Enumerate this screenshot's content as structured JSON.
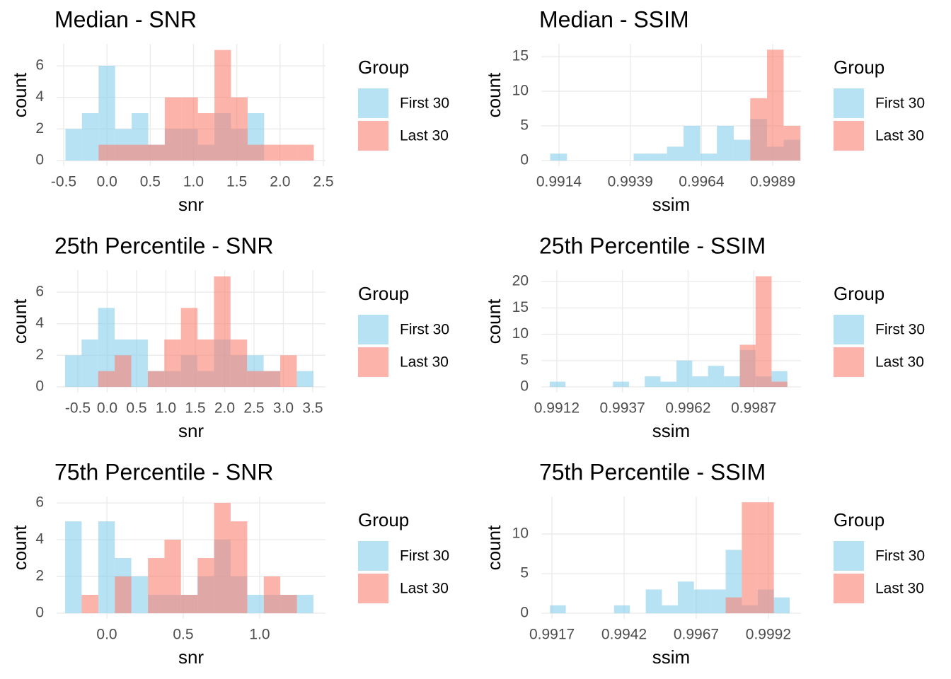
{
  "chart_data": [
    {
      "type": "histogram",
      "title": "Median - SNR",
      "x_label": "snr",
      "y_label": "count",
      "legend_title": "Group",
      "bins": [
        -0.48,
        -0.289,
        -0.097,
        0.094,
        0.285,
        0.477,
        0.668,
        0.859,
        1.051,
        1.242,
        1.433,
        1.625,
        1.816,
        2.007,
        2.199,
        2.39
      ],
      "series": [
        {
          "name": "First 30",
          "color": "#87CEEB",
          "values": [
            2,
            3,
            6,
            2,
            3,
            1,
            2,
            2,
            1,
            3,
            2,
            3,
            0,
            0,
            0
          ]
        },
        {
          "name": "Last 30",
          "color": "#FA8072",
          "values": [
            0,
            0,
            1,
            1,
            1,
            1,
            4,
            4,
            3,
            7,
            4,
            1,
            1,
            1,
            1
          ]
        }
      ],
      "xlim": [
        -0.582,
        2.525
      ],
      "ylim": [
        -0.36,
        7.39
      ],
      "xticks": [
        -0.5,
        {
          "value": 0,
          "label": "0.0"
        },
        0.5,
        {
          "value": 1,
          "label": "1.0"
        },
        1.5,
        {
          "value": 2,
          "label": "2.0"
        },
        2.5
      ],
      "yticks": [
        0,
        2,
        4,
        6
      ],
      "grid": true,
      "opacity": 0.6
    },
    {
      "type": "histogram",
      "title": "Median - SSIM",
      "x_label": "ssim",
      "y_label": "count",
      "legend_title": "Group",
      "bins": [
        0.99109,
        0.99168,
        0.99226,
        0.99285,
        0.99343,
        0.99402,
        0.9946,
        0.99519,
        0.99577,
        0.99636,
        0.99694,
        0.99753,
        0.99811,
        0.9987,
        0.99928,
        0.99987
      ],
      "series": [
        {
          "name": "First 30",
          "color": "#87CEEB",
          "values": [
            1,
            0,
            0,
            0,
            0,
            1,
            1,
            2,
            5,
            1,
            5,
            3,
            6,
            2,
            3
          ]
        },
        {
          "name": "Last 30",
          "color": "#FA8072",
          "values": [
            0,
            0,
            0,
            0,
            0,
            0,
            0,
            0,
            0,
            0,
            0,
            0,
            9,
            16,
            5
          ]
        }
      ],
      "xlim": [
        0.99078,
        0.99989
      ],
      "ylim": [
        -0.82,
        16.84
      ],
      "xticks": [
        0.9914,
        0.9939,
        0.9964,
        0.9989
      ],
      "yticks": [
        0,
        5,
        10,
        15
      ],
      "grid": true,
      "opacity": 0.6
    },
    {
      "type": "histogram",
      "title": "25th Percentile - SNR",
      "x_label": "snr",
      "y_label": "count",
      "legend_title": "Group",
      "bins": [
        -0.717,
        -0.435,
        -0.154,
        0.128,
        0.41,
        0.692,
        0.973,
        1.255,
        1.537,
        1.819,
        2.1,
        2.382,
        2.664,
        2.946,
        3.228,
        3.51
      ],
      "series": [
        {
          "name": "First 30",
          "color": "#87CEEB",
          "values": [
            2,
            3,
            5,
            3,
            3,
            1,
            1,
            2,
            1,
            3,
            2,
            2,
            1,
            0,
            1
          ]
        },
        {
          "name": "Last 30",
          "color": "#FA8072",
          "values": [
            0,
            0,
            1,
            2,
            0,
            1,
            3,
            5,
            3,
            7,
            3,
            1,
            1,
            2,
            0
          ]
        }
      ],
      "xlim": [
        -0.861,
        3.717
      ],
      "ylim": [
        -0.36,
        7.39
      ],
      "xticks": [
        -0.5,
        {
          "value": 0,
          "label": "0.0"
        },
        0.5,
        {
          "value": 1,
          "label": "1.0"
        },
        1.5,
        {
          "value": 2,
          "label": "2.0"
        },
        2.5,
        {
          "value": 3,
          "label": "3.0"
        },
        3.5
      ],
      "yticks": [
        0,
        2,
        4,
        6
      ],
      "grid": true,
      "opacity": 0.6
    },
    {
      "type": "histogram",
      "title": "25th Percentile - SSIM",
      "x_label": "ssim",
      "y_label": "count",
      "legend_title": "Group",
      "bins": [
        0.99093,
        0.99153,
        0.99214,
        0.99274,
        0.99334,
        0.99395,
        0.99455,
        0.99515,
        0.99576,
        0.99636,
        0.99696,
        0.99757,
        0.99817,
        0.99877,
        0.99938,
        0.99998
      ],
      "series": [
        {
          "name": "First 30",
          "color": "#87CEEB",
          "values": [
            1,
            0,
            0,
            0,
            1,
            0,
            2,
            1,
            5,
            2,
            4,
            2,
            7,
            2,
            3
          ]
        },
        {
          "name": "Last 30",
          "color": "#FA8072",
          "values": [
            0,
            0,
            0,
            0,
            0,
            0,
            0,
            0,
            0,
            0,
            0,
            0,
            8,
            21,
            1
          ]
        }
      ],
      "xlim": [
        0.99061,
        1.0005
      ],
      "ylim": [
        -1.07,
        22.15
      ],
      "xticks": [
        0.9912,
        0.9937,
        0.9962,
        0.9987
      ],
      "yticks": [
        0,
        5,
        10,
        15,
        20
      ],
      "grid": true,
      "opacity": 0.6
    },
    {
      "type": "histogram",
      "title": "75th Percentile - SNR",
      "x_label": "snr",
      "y_label": "count",
      "legend_title": "Group",
      "bins": [
        -0.273,
        -0.165,
        -0.056,
        0.052,
        0.16,
        0.269,
        0.377,
        0.485,
        0.594,
        0.702,
        0.81,
        0.919,
        1.027,
        1.135,
        1.244,
        1.352
      ],
      "series": [
        {
          "name": "First 30",
          "color": "#87CEEB",
          "values": [
            5,
            0,
            5,
            3,
            2,
            1,
            1,
            1,
            2,
            4,
            2,
            1,
            1,
            1,
            1
          ]
        },
        {
          "name": "Last 30",
          "color": "#FA8072",
          "values": [
            0,
            1,
            0,
            2,
            0,
            3,
            4,
            1,
            3,
            6,
            5,
            0,
            2,
            1,
            0
          ]
        }
      ],
      "xlim": [
        -0.329,
        1.431
      ],
      "ylim": [
        -0.31,
        6.35
      ],
      "xticks": [
        {
          "value": 0,
          "label": "0.0"
        },
        0.5,
        {
          "value": 1,
          "label": "1.0"
        }
      ],
      "yticks": [
        0,
        2,
        4,
        6
      ],
      "grid": true,
      "opacity": 0.6
    },
    {
      "type": "histogram",
      "title": "75th Percentile - SSIM",
      "x_label": "ssim",
      "y_label": "count",
      "legend_title": "Group",
      "bins": [
        0.99163,
        0.99218,
        0.99274,
        0.99329,
        0.99385,
        0.9944,
        0.99495,
        0.99551,
        0.99606,
        0.99662,
        0.99717,
        0.99772,
        0.99828,
        0.99883,
        0.99939,
        0.99994
      ],
      "series": [
        {
          "name": "First 30",
          "color": "#87CEEB",
          "values": [
            1,
            0,
            0,
            0,
            1,
            0,
            3,
            1,
            4,
            3,
            3,
            8,
            1,
            3,
            2
          ]
        },
        {
          "name": "Last 30",
          "color": "#FA8072",
          "values": [
            0,
            0,
            0,
            0,
            0,
            0,
            0,
            0,
            0,
            0,
            0,
            2,
            14,
            14,
            0
          ]
        }
      ],
      "xlim": [
        0.99133,
        1.00033
      ],
      "ylim": [
        -0.71,
        14.73
      ],
      "xticks": [
        0.9917,
        0.9942,
        0.9967,
        0.9992
      ],
      "yticks": [
        0,
        5,
        10
      ],
      "grid": true,
      "opacity": 0.6
    }
  ]
}
